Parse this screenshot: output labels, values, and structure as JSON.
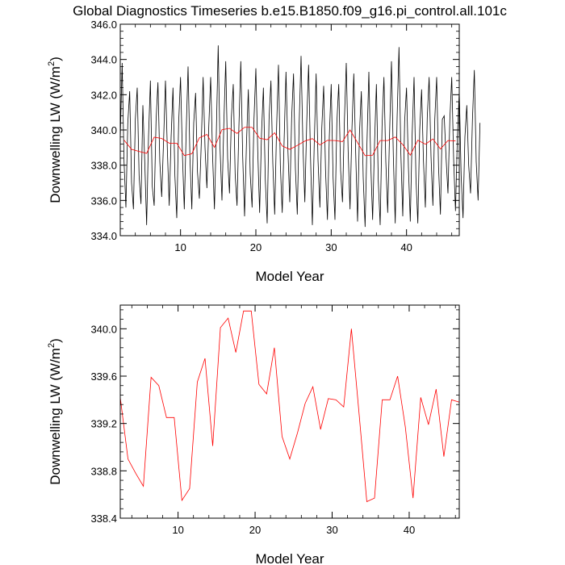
{
  "page": {
    "title": "Global Diagnostics Timeseries b.e15.B1850.f09_g16.pi_control.all.101c"
  },
  "colors": {
    "monthly": "#000000",
    "annual": "#ff0000",
    "frame": "#000000"
  },
  "chart_data": [
    {
      "type": "line",
      "title": "Global Diagnostics Timeseries b.e15.B1850.f09_g16.pi_control.all.101c",
      "xlabel": "Model Year",
      "ylabel": "Downwelling LW (W/m",
      "ylabel_sup": "2",
      "ylabel_close": ")",
      "xlim": [
        2,
        47
      ],
      "ylim": [
        334.0,
        346.0
      ],
      "x_ticks": [
        10,
        20,
        30,
        40
      ],
      "x_tick_labels": [
        "10",
        "20",
        "30",
        "40"
      ],
      "y_ticks": [
        334,
        336,
        338,
        340,
        342,
        344,
        346
      ],
      "y_tick_labels": [
        "334.0",
        "336.0",
        "338.0",
        "340.0",
        "342.0",
        "344.0",
        "346.0"
      ],
      "grid": false,
      "series": [
        {
          "name": "",
          "color": "#000000",
          "x_start": 2.0,
          "x_step": 0.25,
          "values": [
            339.5,
            343.8,
            338.2,
            335.6,
            340.4,
            342.2,
            337.0,
            335.5,
            340.6,
            342.4,
            337.4,
            335.8,
            341.4,
            338.2,
            334.6,
            339.6,
            342.8,
            336.8,
            335.7,
            340.5,
            342.7,
            338.2,
            336.2,
            339.4,
            342.8,
            338.9,
            335.7,
            339.6,
            342.4,
            337.4,
            335.0,
            340.4,
            343.0,
            338.6,
            335.5,
            339.9,
            343.6,
            338.4,
            335.5,
            340.4,
            342.1,
            337.6,
            336.1,
            339.2,
            343.0,
            339.0,
            336.7,
            340.2,
            343.0,
            338.6,
            335.5,
            339.8,
            344.8,
            338.9,
            336.0,
            340.4,
            343.9,
            338.4,
            336.4,
            340.7,
            342.6,
            337.5,
            335.7,
            340.2,
            343.9,
            338.5,
            335.1,
            339.2,
            342.3,
            337.5,
            335.6,
            340.6,
            343.5,
            338.8,
            335.3,
            339.8,
            342.4,
            337.2,
            334.7,
            340.6,
            342.8,
            338.1,
            335.2,
            340.1,
            343.7,
            338.0,
            335.3,
            339.4,
            343.3,
            338.9,
            335.9,
            340.7,
            343.2,
            337.8,
            335.2,
            340.4,
            344.2,
            339.1,
            335.9,
            340.4,
            343.7,
            338.5,
            334.6,
            339.2,
            343.2,
            338.3,
            335.6,
            340.1,
            342.5,
            337.7,
            334.9,
            339.6,
            342.6,
            337.3,
            334.9,
            340.4,
            342.6,
            337.7,
            335.9,
            340.5,
            343.8,
            338.8,
            335.5,
            340.0,
            343.2,
            338.7,
            334.8,
            339.8,
            342.2,
            337.3,
            334.5,
            339.3,
            343.3,
            338.1,
            334.9,
            339.2,
            342.6,
            337.1,
            334.6,
            340.2,
            343.0,
            338.2,
            335.3,
            339.8,
            343.9,
            338.5,
            334.7,
            340.7,
            344.7,
            338.6,
            335.1,
            340.5,
            342.4,
            337.9,
            334.8,
            339.8,
            343.0,
            337.3,
            334.7,
            340.0,
            342.3,
            338.2,
            335.6,
            340.7,
            343.0,
            338.5,
            335.7,
            340.6,
            343.0,
            337.9,
            335.2,
            340.6,
            340.8,
            338.4,
            336.4,
            340.6,
            343.0,
            338.4,
            335.4,
            339.6,
            342.2,
            337.4,
            335.0,
            339.6,
            341.4,
            338.0,
            336.4,
            340.6,
            343.4,
            338.2,
            336.0,
            340.4
          ]
        },
        {
          "name": "",
          "color": "#ff0000",
          "x": [
            2.5,
            3.5,
            4.5,
            5.5,
            6.5,
            7.5,
            8.5,
            9.5,
            10.5,
            11.5,
            12.5,
            13.5,
            14.5,
            15.5,
            16.5,
            17.5,
            18.5,
            19.5,
            20.5,
            21.5,
            22.5,
            23.5,
            24.5,
            25.5,
            26.5,
            27.5,
            28.5,
            29.5,
            30.5,
            31.5,
            32.5,
            33.5,
            34.5,
            35.5,
            36.5,
            37.5,
            38.5,
            39.5,
            40.5,
            41.5,
            42.5,
            43.5,
            44.5,
            45.5,
            46.5
          ],
          "values": [
            339.42,
            338.9,
            338.78,
            338.67,
            339.59,
            339.52,
            339.25,
            339.25,
            338.55,
            338.65,
            339.55,
            339.75,
            339.01,
            340.01,
            340.09,
            339.8,
            340.15,
            340.15,
            339.53,
            339.45,
            339.84,
            339.09,
            338.9,
            339.12,
            339.37,
            339.51,
            339.15,
            339.41,
            339.4,
            339.34,
            340.0,
            339.28,
            338.54,
            338.57,
            339.4,
            339.4,
            339.6,
            339.17,
            338.57,
            339.42,
            339.19,
            339.49,
            338.92,
            339.4,
            339.38
          ]
        }
      ]
    },
    {
      "type": "line",
      "xlabel": "Model Year",
      "ylabel": "Downwelling LW (W/m",
      "ylabel_sup": "2",
      "ylabel_close": ")",
      "xlim": [
        2.5,
        46.5
      ],
      "ylim": [
        338.4,
        340.2
      ],
      "x_ticks": [
        10,
        20,
        30,
        40
      ],
      "x_tick_labels": [
        "10",
        "20",
        "30",
        "40"
      ],
      "y_ticks": [
        338.4,
        338.8,
        339.2,
        339.6,
        340.0
      ],
      "y_tick_labels": [
        "338.4",
        "338.8",
        "339.2",
        "339.6",
        "340.0"
      ],
      "grid": false,
      "series": [
        {
          "name": "",
          "color": "#ff0000",
          "x": [
            2.5,
            3.5,
            4.5,
            5.5,
            6.5,
            7.5,
            8.5,
            9.5,
            10.5,
            11.5,
            12.5,
            13.5,
            14.5,
            15.5,
            16.5,
            17.5,
            18.5,
            19.5,
            20.5,
            21.5,
            22.5,
            23.5,
            24.5,
            25.5,
            26.5,
            27.5,
            28.5,
            29.5,
            30.5,
            31.5,
            32.5,
            33.5,
            34.5,
            35.5,
            36.5,
            37.5,
            38.5,
            39.5,
            40.5,
            41.5,
            42.5,
            43.5,
            44.5,
            45.5,
            46.5
          ],
          "values": [
            339.42,
            338.9,
            338.78,
            338.67,
            339.59,
            339.52,
            339.25,
            339.25,
            338.55,
            338.65,
            339.55,
            339.75,
            339.01,
            340.01,
            340.09,
            339.8,
            340.15,
            340.15,
            339.53,
            339.45,
            339.84,
            339.09,
            338.9,
            339.12,
            339.37,
            339.51,
            339.15,
            339.41,
            339.4,
            339.34,
            340.0,
            339.28,
            338.54,
            338.57,
            339.4,
            339.4,
            339.6,
            339.17,
            338.57,
            339.42,
            339.19,
            339.49,
            338.92,
            339.4,
            339.38
          ]
        }
      ]
    }
  ]
}
